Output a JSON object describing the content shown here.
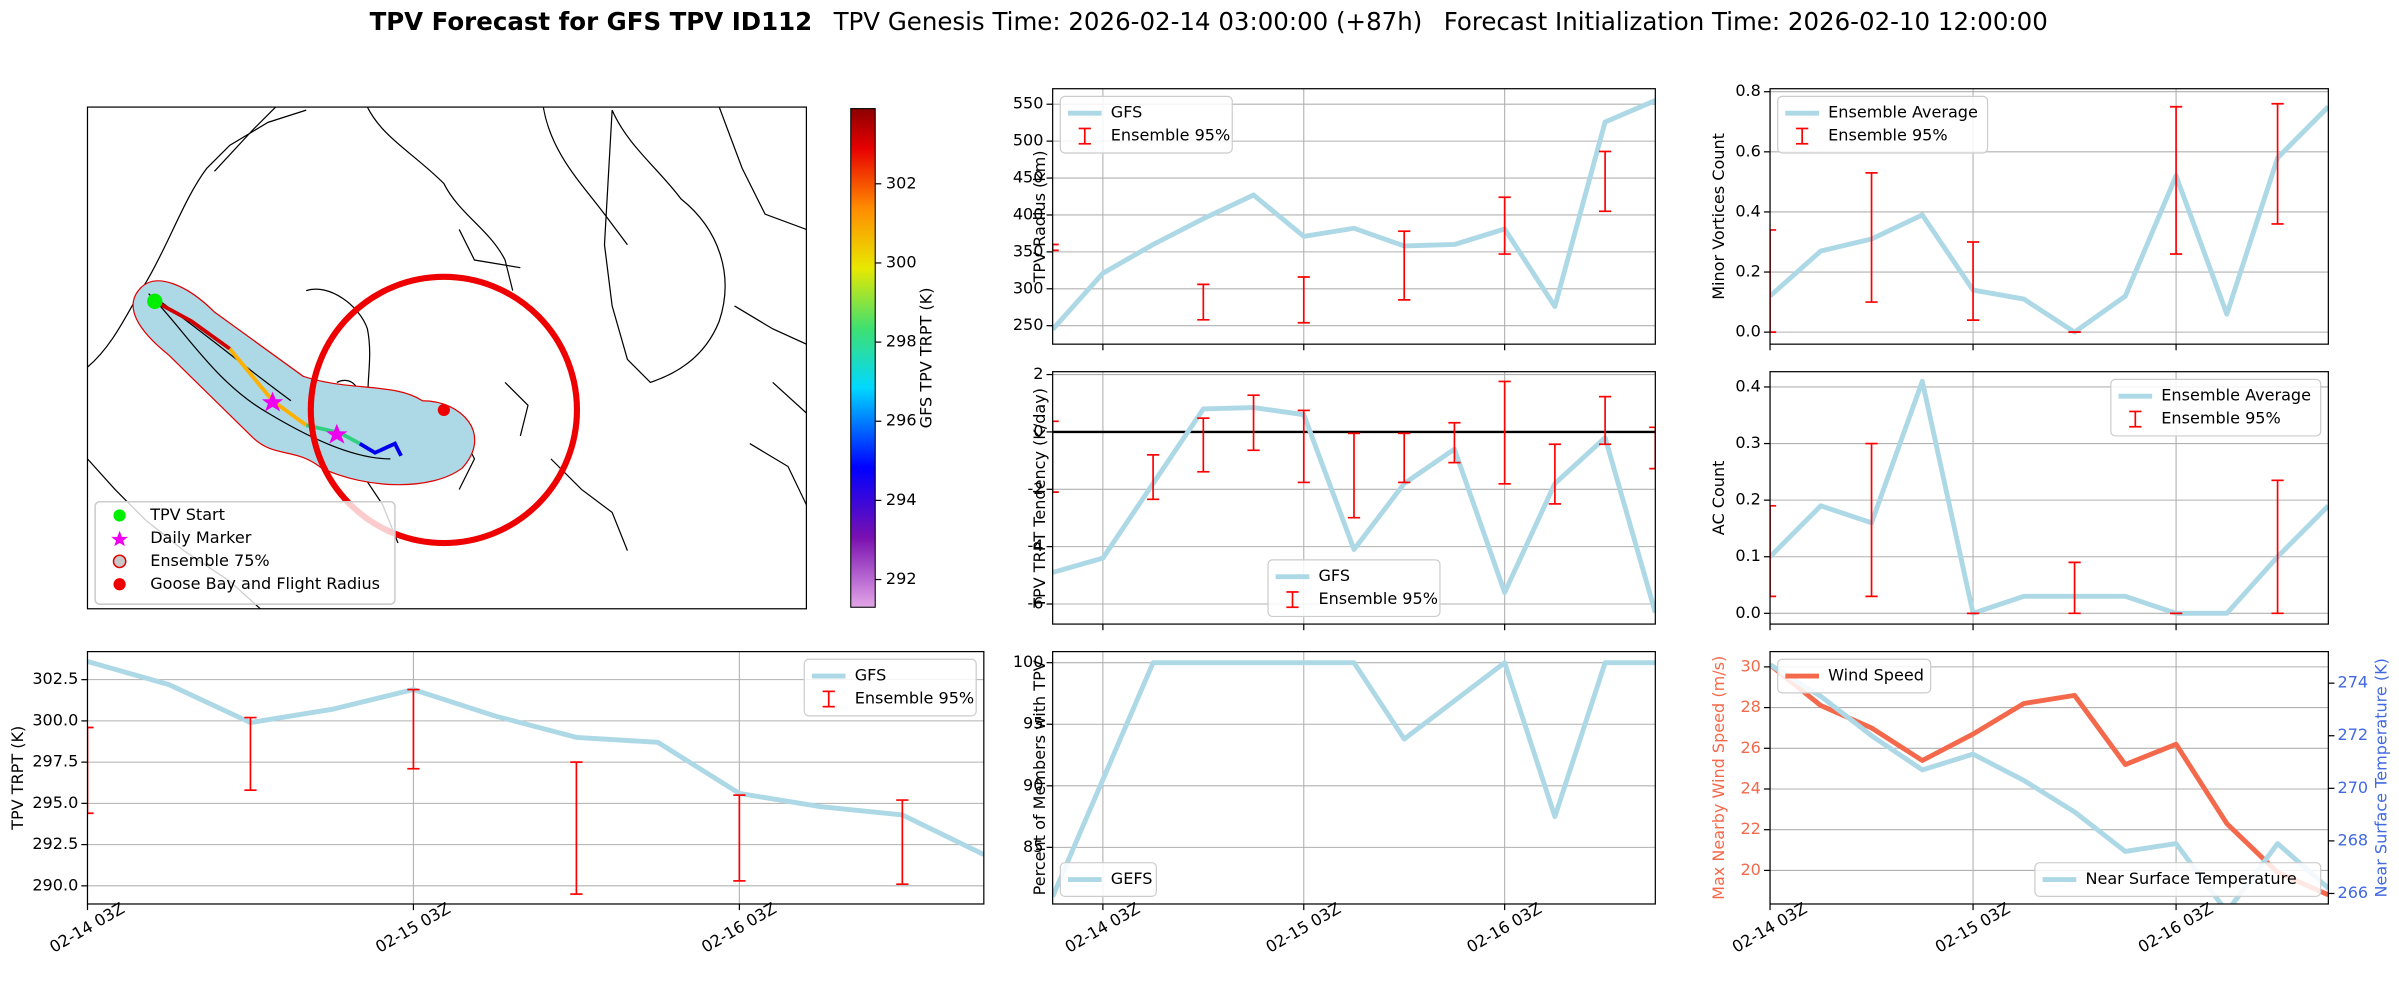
{
  "figure": {
    "title": "TPV Forecast for GFS TPV ID112",
    "genesis": "TPV Genesis Time: 2026-02-14 03:00:00 (+87h)",
    "init": "Forecast Initialization Time: 2026-02-10 12:00:00"
  },
  "chart_data": [
    {
      "type": "map",
      "legend": [
        "TPV Start",
        "Daily Marker",
        "Ensemble 75%",
        "Goose Bay and Flight Radius"
      ],
      "colorbar_label": "GFS TPV TRPT (K)",
      "colorbar_lim": [
        291.3,
        303.9
      ],
      "colorbar_ticks": [
        292,
        294,
        296,
        298,
        300,
        302
      ]
    },
    {
      "type": "line",
      "ylabel": "TPV TRPT (K)",
      "x": [
        "02-14 03Z",
        "02-14 09Z",
        "02-14 15Z",
        "02-14 21Z",
        "02-15 03Z",
        "02-15 09Z",
        "02-15 15Z",
        "02-15 21Z",
        "02-16 03Z",
        "02-16 09Z",
        "02-16 15Z",
        "02-16 21Z"
      ],
      "xticks": [
        "02-14 03Z",
        "02-15 03Z",
        "02-16 03Z"
      ],
      "ylim": [
        288.9,
        304.2
      ],
      "yticks": [
        {
          "value": 290,
          "label": "290.0"
        },
        {
          "value": 292.5,
          "label": "292.5"
        },
        {
          "value": 295,
          "label": "295.0"
        },
        {
          "value": 297.5,
          "label": "297.5"
        },
        {
          "value": 300,
          "label": "300.0"
        },
        {
          "value": 302.5,
          "label": "302.5"
        }
      ],
      "grid": true,
      "legend": "upper right",
      "series": [
        {
          "name": "GFS",
          "color": "#add8e6",
          "values": [
            303.6,
            302.2,
            299.9,
            300.7,
            301.9,
            300.3,
            299.0,
            298.7,
            295.6,
            294.8,
            294.3,
            291.9
          ]
        },
        {
          "name": "Ensemble 95%",
          "type": "errorbar",
          "color": "#ff0000",
          "low": [
            294.4,
            null,
            295.8,
            null,
            297.1,
            null,
            289.5,
            null,
            290.3,
            null,
            290.1,
            null
          ],
          "high": [
            299.6,
            null,
            300.2,
            null,
            301.9,
            null,
            297.5,
            null,
            295.5,
            null,
            295.2,
            null
          ]
        }
      ]
    },
    {
      "type": "line",
      "ylabel": "TPV Radius (km)",
      "x": [
        "02-13 21Z",
        "02-14 03Z",
        "02-14 09Z",
        "02-14 15Z",
        "02-14 21Z",
        "02-15 03Z",
        "02-15 09Z",
        "02-15 15Z",
        "02-15 21Z",
        "02-16 03Z",
        "02-16 09Z",
        "02-16 15Z",
        "02-16 21Z"
      ],
      "ylim": [
        225,
        571
      ],
      "yticks": [
        250,
        300,
        350,
        400,
        450,
        500,
        550
      ],
      "grid": true,
      "legend": "upper left",
      "series": [
        {
          "name": "GFS",
          "color": "#add8e6",
          "values": [
            245,
            321,
            360,
            395,
            427,
            371,
            382,
            358,
            360,
            381,
            276,
            526,
            555
          ]
        },
        {
          "name": "Ensemble 95%",
          "type": "errorbar",
          "color": "#ff0000",
          "low": [
            352,
            null,
            null,
            258,
            null,
            254,
            null,
            285,
            null,
            347,
            null,
            405,
            null
          ],
          "high": [
            360,
            null,
            null,
            306,
            null,
            316,
            null,
            378,
            null,
            424,
            null,
            486,
            null
          ]
        }
      ]
    },
    {
      "type": "line",
      "ylabel": "TPV TRPT Tendency (K/day)",
      "x": [
        "02-13 21Z",
        "02-14 03Z",
        "02-14 09Z",
        "02-14 15Z",
        "02-14 21Z",
        "02-15 03Z",
        "02-15 09Z",
        "02-15 15Z",
        "02-15 21Z",
        "02-16 03Z",
        "02-16 09Z",
        "02-16 15Z",
        "02-16 21Z"
      ],
      "ylim": [
        -6.7,
        2.1
      ],
      "yticks": [
        -6,
        -4,
        -2,
        0,
        2
      ],
      "hline": 0,
      "grid": true,
      "legend": "lower center",
      "series": [
        {
          "name": "GFS",
          "color": "#add8e6",
          "values": [
            -4.9,
            -4.4,
            -1.8,
            0.8,
            0.85,
            0.6,
            -4.1,
            -1.8,
            -0.6,
            -5.6,
            -1.8,
            -0.2,
            -6.3
          ]
        },
        {
          "name": "Ensemble 95%",
          "type": "errorbar",
          "color": "#ff0000",
          "low": [
            -2.1,
            null,
            -2.35,
            -1.39,
            -0.64,
            -1.76,
            -2.99,
            -1.76,
            -1.07,
            -1.81,
            -2.51,
            -0.43,
            -1.28
          ],
          "high": [
            0.37,
            null,
            -0.8,
            0.48,
            1.28,
            0.75,
            -0.05,
            -0.05,
            0.32,
            1.76,
            -0.43,
            1.23,
            0.16
          ]
        }
      ]
    },
    {
      "type": "line",
      "ylabel": "Percent of Members with TPV",
      "x": [
        "02-13 21Z",
        "02-14 03Z",
        "02-14 09Z",
        "02-14 15Z",
        "02-14 21Z",
        "02-15 03Z",
        "02-15 09Z",
        "02-15 15Z",
        "02-15 21Z",
        "02-16 03Z",
        "02-16 09Z",
        "02-16 15Z",
        "02-16 21Z"
      ],
      "xticks": [
        "02-14 03Z",
        "02-15 03Z",
        "02-16 03Z"
      ],
      "ylim": [
        80.4,
        100.9
      ],
      "yticks": [
        85,
        90,
        95,
        100
      ],
      "grid": true,
      "legend": "lower left",
      "series": [
        {
          "name": "GEFS",
          "color": "#add8e6",
          "values": [
            81,
            90.5,
            100,
            100,
            100,
            100,
            100,
            93.8,
            96.9,
            100,
            87.5,
            100,
            100
          ]
        }
      ]
    },
    {
      "type": "line",
      "ylabel": "Minor Vortices Count",
      "x": [
        "02-14 03Z",
        "02-14 09Z",
        "02-14 15Z",
        "02-14 21Z",
        "02-15 03Z",
        "02-15 09Z",
        "02-15 15Z",
        "02-15 21Z",
        "02-16 03Z",
        "02-16 09Z",
        "02-16 15Z",
        "02-16 21Z"
      ],
      "ylim": [
        -0.04,
        0.81
      ],
      "yticks": [
        {
          "value": 0,
          "label": "0.0"
        },
        {
          "value": 0.2,
          "label": "0.2"
        },
        {
          "value": 0.4,
          "label": "0.4"
        },
        {
          "value": 0.6,
          "label": "0.6"
        },
        {
          "value": 0.8,
          "label": "0.8"
        }
      ],
      "grid": true,
      "legend": "upper left",
      "series": [
        {
          "name": "Ensemble Average",
          "color": "#add8e6",
          "values": [
            0.12,
            0.27,
            0.31,
            0.39,
            0.14,
            0.11,
            0.0,
            0.12,
            0.52,
            0.06,
            0.58,
            0.75
          ]
        },
        {
          "name": "Ensemble 95%",
          "type": "errorbar",
          "color": "#ff0000",
          "low": [
            0.0,
            null,
            0.1,
            null,
            0.04,
            null,
            0.0,
            null,
            0.26,
            null,
            0.36,
            null
          ],
          "high": [
            0.34,
            null,
            0.53,
            null,
            0.3,
            null,
            0.0,
            null,
            0.75,
            null,
            0.76,
            null
          ]
        }
      ]
    },
    {
      "type": "line",
      "ylabel": "AC Count",
      "x": [
        "02-14 03Z",
        "02-14 09Z",
        "02-14 15Z",
        "02-14 21Z",
        "02-15 03Z",
        "02-15 09Z",
        "02-15 15Z",
        "02-15 21Z",
        "02-16 03Z",
        "02-16 09Z",
        "02-16 15Z",
        "02-16 21Z"
      ],
      "ylim": [
        -0.019,
        0.427
      ],
      "yticks": [
        {
          "value": 0,
          "label": "0.0"
        },
        {
          "value": 0.1,
          "label": "0.1"
        },
        {
          "value": 0.2,
          "label": "0.2"
        },
        {
          "value": 0.3,
          "label": "0.3"
        },
        {
          "value": 0.4,
          "label": "0.4"
        }
      ],
      "grid": true,
      "legend": "upper right",
      "series": [
        {
          "name": "Ensemble Average",
          "color": "#add8e6",
          "values": [
            0.1,
            0.19,
            0.16,
            0.41,
            0.0,
            0.03,
            0.03,
            0.03,
            0.0,
            0.0,
            0.1,
            0.19
          ]
        },
        {
          "name": "Ensemble 95%",
          "type": "errorbar",
          "color": "#ff0000",
          "low": [
            0.03,
            null,
            0.03,
            null,
            0.0,
            null,
            0.0,
            null,
            0.0,
            null,
            0.0,
            null
          ],
          "high": [
            0.19,
            null,
            0.3,
            null,
            0.0,
            null,
            0.09,
            null,
            0.0,
            null,
            0.235,
            null
          ]
        }
      ]
    },
    {
      "type": "line",
      "ylabel": "Max Nearby Wind Speed (m/s)",
      "ylabel_color": "#f4694b",
      "y2label": "Near Surface Temperature (K)",
      "y2label_color": "#4169e1",
      "x": [
        "02-14 03Z",
        "02-14 09Z",
        "02-14 15Z",
        "02-14 21Z",
        "02-15 03Z",
        "02-15 09Z",
        "02-15 15Z",
        "02-15 21Z",
        "02-16 03Z",
        "02-16 09Z",
        "02-16 15Z",
        "02-16 21Z"
      ],
      "xticks": [
        "02-14 03Z",
        "02-15 03Z",
        "02-16 03Z"
      ],
      "ylim": [
        18.35,
        30.75
      ],
      "yticks": [
        20,
        22,
        24,
        26,
        28,
        30
      ],
      "y2lim": [
        265.6,
        275.2
      ],
      "y2ticks": [
        266,
        268,
        270,
        272,
        274
      ],
      "grid": true,
      "series": [
        {
          "name": "Wind Speed",
          "color": "#f4694b",
          "legend": "upper left",
          "values": [
            30.1,
            28.1,
            27.0,
            25.4,
            26.7,
            28.2,
            28.6,
            25.2,
            26.2,
            22.3,
            19.9,
            18.8
          ]
        },
        {
          "name": "Near Surface Temperature",
          "color": "#add8e6",
          "axis": "y2",
          "legend": "lower right",
          "values": [
            274.7,
            273.5,
            272.0,
            270.7,
            271.3,
            270.3,
            269.1,
            267.6,
            267.9,
            265.3,
            267.9,
            266.2
          ]
        }
      ]
    }
  ]
}
